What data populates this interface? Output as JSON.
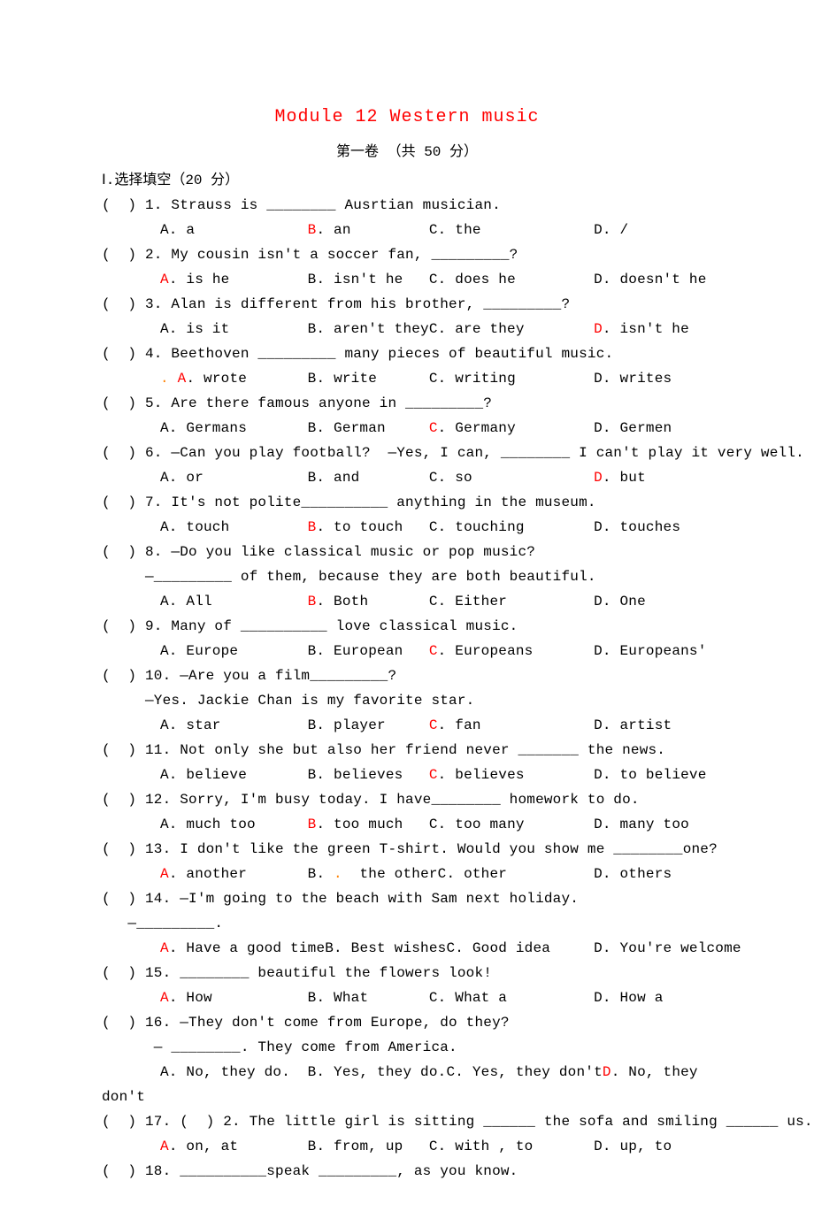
{
  "title": "Module 12 Western  music",
  "subtitle": "第一卷 （共 50 分）",
  "section_heading": "Ⅰ.选择填空（20 分）",
  "questions": [
    {
      "n": "1",
      "stem": "Strauss is ________ Ausrtian musician.",
      "opts": [
        {
          "l": "A",
          "t": "a",
          "red": false
        },
        {
          "l": "B",
          "t": "an",
          "red": true
        },
        {
          "l": "C",
          "t": "the",
          "red": false
        },
        {
          "l": "D",
          "t": "/",
          "red": false
        }
      ]
    },
    {
      "n": "2",
      "stem": "My cousin isn't a soccer fan, _________?",
      "opts": [
        {
          "l": "A",
          "t": "is he",
          "red": true
        },
        {
          "l": "B",
          "t": "isn't he",
          "red": false
        },
        {
          "l": "C",
          "t": "does he",
          "red": false
        },
        {
          "l": "D",
          "t": "doesn't he",
          "red": false
        }
      ]
    },
    {
      "n": "3",
      "stem": "Alan is different from his brother, _________?",
      "opts": [
        {
          "l": "A",
          "t": "is it",
          "red": false
        },
        {
          "l": "B",
          "t": "aren't they",
          "red": false
        },
        {
          "l": "C",
          "t": "are they",
          "red": false
        },
        {
          "l": "D",
          "t": "isn't he",
          "red": true
        }
      ]
    },
    {
      "n": "4",
      "stem": "Beethoven _________ many pieces of beautiful music.",
      "opts": [
        {
          "l": "A",
          "t": "wrote",
          "red": true,
          "dot": true
        },
        {
          "l": "B",
          "t": "write",
          "red": false
        },
        {
          "l": "C",
          "t": "writing",
          "red": false
        },
        {
          "l": "D",
          "t": "writes",
          "red": false
        }
      ]
    },
    {
      "n": "5",
      "stem": "Are there famous anyone in _________?",
      "opts": [
        {
          "l": "A",
          "t": "Germans",
          "red": false
        },
        {
          "l": "B",
          "t": "German",
          "red": false
        },
        {
          "l": "C",
          "t": "Germany",
          "red": true
        },
        {
          "l": "D",
          "t": "Germen",
          "red": false
        }
      ]
    },
    {
      "n": "6",
      "stem": "—Can you play football?  —Yes, I can, ________ I can't play it very well.",
      "opts": [
        {
          "l": "A",
          "t": "or",
          "red": false
        },
        {
          "l": "B",
          "t": "and",
          "red": false
        },
        {
          "l": "C",
          "t": "so",
          "red": false
        },
        {
          "l": "D",
          "t": "but",
          "red": true
        }
      ]
    },
    {
      "n": "7",
      "stem": "It's not polite__________ anything in the museum.",
      "opts": [
        {
          "l": "A",
          "t": "touch",
          "red": false
        },
        {
          "l": "B",
          "t": "to touch",
          "red": true
        },
        {
          "l": "C",
          "t": "touching",
          "red": false
        },
        {
          "l": "D",
          "t": "touches",
          "red": false
        }
      ]
    },
    {
      "n": "8",
      "stem": "—Do you like classical music or pop music?",
      "stem2": "—_________ of them, because they are both beautiful.",
      "opts": [
        {
          "l": "A",
          "t": "All",
          "red": false
        },
        {
          "l": "B",
          "t": "Both",
          "red": true
        },
        {
          "l": "C",
          "t": "Either",
          "red": false
        },
        {
          "l": "D",
          "t": "One",
          "red": false
        }
      ]
    },
    {
      "n": "9",
      "stem": "Many of __________ love classical music.",
      "opts": [
        {
          "l": "A",
          "t": "Europe",
          "red": false
        },
        {
          "l": "B",
          "t": "European",
          "red": false
        },
        {
          "l": "C",
          "t": "Europeans",
          "red": true
        },
        {
          "l": "D",
          "t": "Europeans'",
          "red": false
        }
      ]
    },
    {
      "n": "10",
      "stem": "—Are you a film_________?",
      "stem2": "—Yes. Jackie Chan is my favorite star.",
      "opts": [
        {
          "l": "A",
          "t": "star",
          "red": false
        },
        {
          "l": "B",
          "t": "player",
          "red": false
        },
        {
          "l": "C",
          "t": "fan",
          "red": true
        },
        {
          "l": "D",
          "t": "artist",
          "red": false
        }
      ]
    },
    {
      "n": "11",
      "stem": "Not only she but also her friend never _______ the news.",
      "opts": [
        {
          "l": "A",
          "t": "believe",
          "red": false
        },
        {
          "l": "B",
          "t": "believes",
          "red": false
        },
        {
          "l": "C",
          "t": "believes",
          "red": true
        },
        {
          "l": "D",
          "t": "to believe",
          "red": false
        }
      ]
    },
    {
      "n": "12",
      "stem": "Sorry, I'm busy today. I have________ homework to do.",
      "opts": [
        {
          "l": "A",
          "t": "much too",
          "red": false
        },
        {
          "l": "B",
          "t": "too much",
          "red": true
        },
        {
          "l": "C",
          "t": "too many",
          "red": false
        },
        {
          "l": "D",
          "t": "many too",
          "red": false
        }
      ]
    },
    {
      "n": "13",
      "stem": "I don't like the green T-shirt. Would you show me ________one?",
      "opts": [
        {
          "l": "A",
          "t": "another",
          "red": true
        },
        {
          "l": "B",
          "t": "the other",
          "red": false,
          "dot2": true
        },
        {
          "l": "C",
          "t": "other",
          "red": false
        },
        {
          "l": "D",
          "t": "others",
          "red": false
        }
      ]
    },
    {
      "n": "14",
      "stem": "—I'm going to the beach with Sam next holiday.",
      "stem2": "—_________.",
      "opts": [
        {
          "l": "A",
          "t": "Have a good time",
          "red": true
        },
        {
          "l": "B",
          "t": "Best wishes",
          "red": false
        },
        {
          "l": "C",
          "t": "Good idea",
          "red": false
        },
        {
          "l": "D",
          "t": "You're welcome",
          "red": false
        }
      ]
    },
    {
      "n": "15",
      "stem": "________ beautiful the flowers look!",
      "opts": [
        {
          "l": "A",
          "t": "How",
          "red": true
        },
        {
          "l": "B",
          "t": "What",
          "red": false
        },
        {
          "l": "C",
          "t": "What a",
          "red": false
        },
        {
          "l": "D",
          "t": "How a",
          "red": false
        }
      ]
    },
    {
      "n": "16",
      "stem": "—They don't come from Europe, do they?",
      "stem2": "— ________. They come from America.",
      "opts_wrap": true,
      "opts": [
        {
          "l": "A",
          "t": "No, they do.",
          "red": false
        },
        {
          "l": "B",
          "t": "Yes, they do.",
          "red": false
        },
        {
          "l": "C",
          "t": "Yes, they don't",
          "red": false
        },
        {
          "l": "D",
          "t": "No, they",
          "red": true
        }
      ],
      "wrap_tail": "don't"
    },
    {
      "n": "17",
      "stem": "(  ) 2. The little girl is sitting ______ the sofa and smiling ______ us.",
      "opts": [
        {
          "l": "A",
          "t": "on, at",
          "red": true
        },
        {
          "l": "B",
          "t": "from, up",
          "red": false
        },
        {
          "l": "C",
          "t": "with , to",
          "red": false
        },
        {
          "l": "D",
          "t": "up, to",
          "red": false
        }
      ]
    },
    {
      "n": "18",
      "stem": "__________speak _________, as you know."
    }
  ]
}
